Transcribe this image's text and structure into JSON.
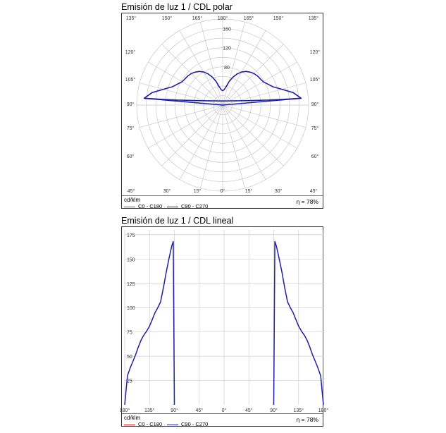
{
  "polar": {
    "title": "Emisión de luz 1 / CDL polar",
    "unit": "cd/klm",
    "eta": "η = 78%",
    "radial_ticks": [
      80,
      120,
      160
    ],
    "top_angle_labels": [
      "135°",
      "150°",
      "165°",
      "180°",
      "165°",
      "150°",
      "135°"
    ],
    "side_angle_labels": [
      "120°",
      "105°",
      "90°",
      "75°",
      "60°"
    ],
    "bottom_angle_labels": [
      "45°",
      "30°",
      "15°",
      "0°",
      "15°",
      "30°",
      "45°"
    ],
    "legend": [
      {
        "label": "C0 - C180",
        "color": "#e8212b"
      },
      {
        "label": "C90 - C270",
        "color": "#1f1fa8"
      }
    ]
  },
  "linear": {
    "title": "Emisión de luz 1 / CDL lineal",
    "unit": "cd/klm",
    "eta": "η = 78%",
    "y_ticks": [
      25,
      50,
      75,
      100,
      125,
      150,
      175
    ],
    "x_tick_labels": [
      "180°",
      "135°",
      "90°",
      "45°",
      "0°",
      "45°",
      "90°",
      "135°",
      "180°"
    ],
    "legend": [
      {
        "label": "C0 - C180",
        "color": "#e8212b"
      },
      {
        "label": "C90 - C270",
        "color": "#1f1fa8"
      }
    ]
  },
  "chart_data": [
    {
      "type": "polar",
      "title": "Emisión de luz 1 / CDL polar",
      "unit": "cd/klm",
      "rlim": [
        0,
        180
      ],
      "angle_unit": "deg",
      "series": [
        {
          "name": "C90 - C270",
          "color": "#1f1fa8",
          "gamma": [
            90,
            95,
            100,
            105,
            110,
            115,
            120,
            125,
            130,
            135,
            140,
            145,
            150,
            155,
            160,
            165,
            170,
            175,
            180
          ],
          "values": [
            0,
            165,
            150,
            128,
            112,
            104,
            98,
            96,
            95,
            93,
            90,
            86,
            80,
            72,
            62,
            50,
            38,
            32,
            30
          ]
        },
        {
          "name": "C0 - C180",
          "color": "#e8212b",
          "gamma": [],
          "values": []
        }
      ]
    },
    {
      "type": "line",
      "title": "Emisión de luz 1 / CDL lineal",
      "unit": "cd/klm",
      "ylim": [
        0,
        180
      ],
      "x_ticks": [
        "180°",
        "135°",
        "90°",
        "45°",
        "0°",
        "45°",
        "90°",
        "135°",
        "180°"
      ],
      "series": [
        {
          "name": "C90 - C270",
          "color": "#1f1fa8",
          "gamma": [
            90,
            92,
            95,
            100,
            105,
            110,
            115,
            120,
            125,
            130,
            135,
            140,
            145,
            150,
            155,
            160,
            165,
            170,
            175,
            180
          ],
          "values": [
            0,
            168,
            163,
            150,
            136,
            120,
            106,
            100,
            95,
            88,
            81,
            76,
            72,
            67,
            60,
            52,
            45,
            38,
            30,
            0
          ]
        },
        {
          "name": "C0 - C180",
          "color": "#e8212b",
          "gamma": [],
          "values": []
        }
      ]
    }
  ]
}
